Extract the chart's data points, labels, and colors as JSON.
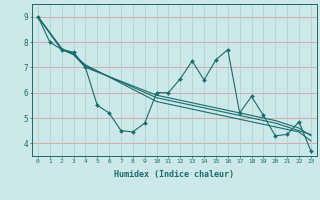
{
  "xlabel": "Humidex (Indice chaleur)",
  "xlim": [
    -0.5,
    23.5
  ],
  "ylim": [
    3.5,
    9.5
  ],
  "yticks": [
    4,
    5,
    6,
    7,
    8,
    9
  ],
  "xticks": [
    0,
    1,
    2,
    3,
    4,
    5,
    6,
    7,
    8,
    9,
    10,
    11,
    12,
    13,
    14,
    15,
    16,
    17,
    18,
    19,
    20,
    21,
    22,
    23
  ],
  "bg_color": "#cce8e8",
  "line_color": "#1a6b6b",
  "grid_h_color": "#d4a0a0",
  "grid_v_color": "#aad4d4",
  "line1_x": [
    0,
    1,
    2,
    3,
    4,
    5,
    6,
    7,
    8,
    9,
    10,
    11,
    12,
    13,
    14,
    15,
    16,
    17,
    18,
    19,
    20,
    21,
    22,
    23
  ],
  "line1_y": [
    9.0,
    8.0,
    7.7,
    7.6,
    7.0,
    5.5,
    5.2,
    4.5,
    4.45,
    4.8,
    6.0,
    6.0,
    6.55,
    7.25,
    6.5,
    7.3,
    7.7,
    5.2,
    5.85,
    5.1,
    4.3,
    4.35,
    4.85,
    3.7
  ],
  "line2_x": [
    0,
    2,
    3,
    4,
    10,
    11,
    12,
    13,
    14,
    15,
    16,
    17,
    18,
    19,
    20,
    21,
    22,
    23
  ],
  "line2_y": [
    9.0,
    7.7,
    7.5,
    7.1,
    5.65,
    5.55,
    5.45,
    5.35,
    5.25,
    5.15,
    5.05,
    4.95,
    4.85,
    4.75,
    4.65,
    4.55,
    4.45,
    4.1
  ],
  "line3_x": [
    0,
    2,
    3,
    4,
    10,
    11,
    12,
    13,
    14,
    15,
    16,
    17,
    18,
    19,
    20,
    21,
    22,
    23
  ],
  "line3_y": [
    9.0,
    7.7,
    7.55,
    7.05,
    5.8,
    5.7,
    5.6,
    5.5,
    5.4,
    5.3,
    5.2,
    5.1,
    5.0,
    4.9,
    4.8,
    4.65,
    4.5,
    4.35
  ],
  "line4_x": [
    0,
    2,
    3,
    4,
    10,
    11,
    12,
    13,
    14,
    15,
    16,
    17,
    18,
    19,
    20,
    21,
    22,
    23
  ],
  "line4_y": [
    9.0,
    7.75,
    7.5,
    7.0,
    5.9,
    5.8,
    5.7,
    5.6,
    5.5,
    5.4,
    5.3,
    5.2,
    5.1,
    5.0,
    4.9,
    4.75,
    4.6,
    4.3
  ]
}
